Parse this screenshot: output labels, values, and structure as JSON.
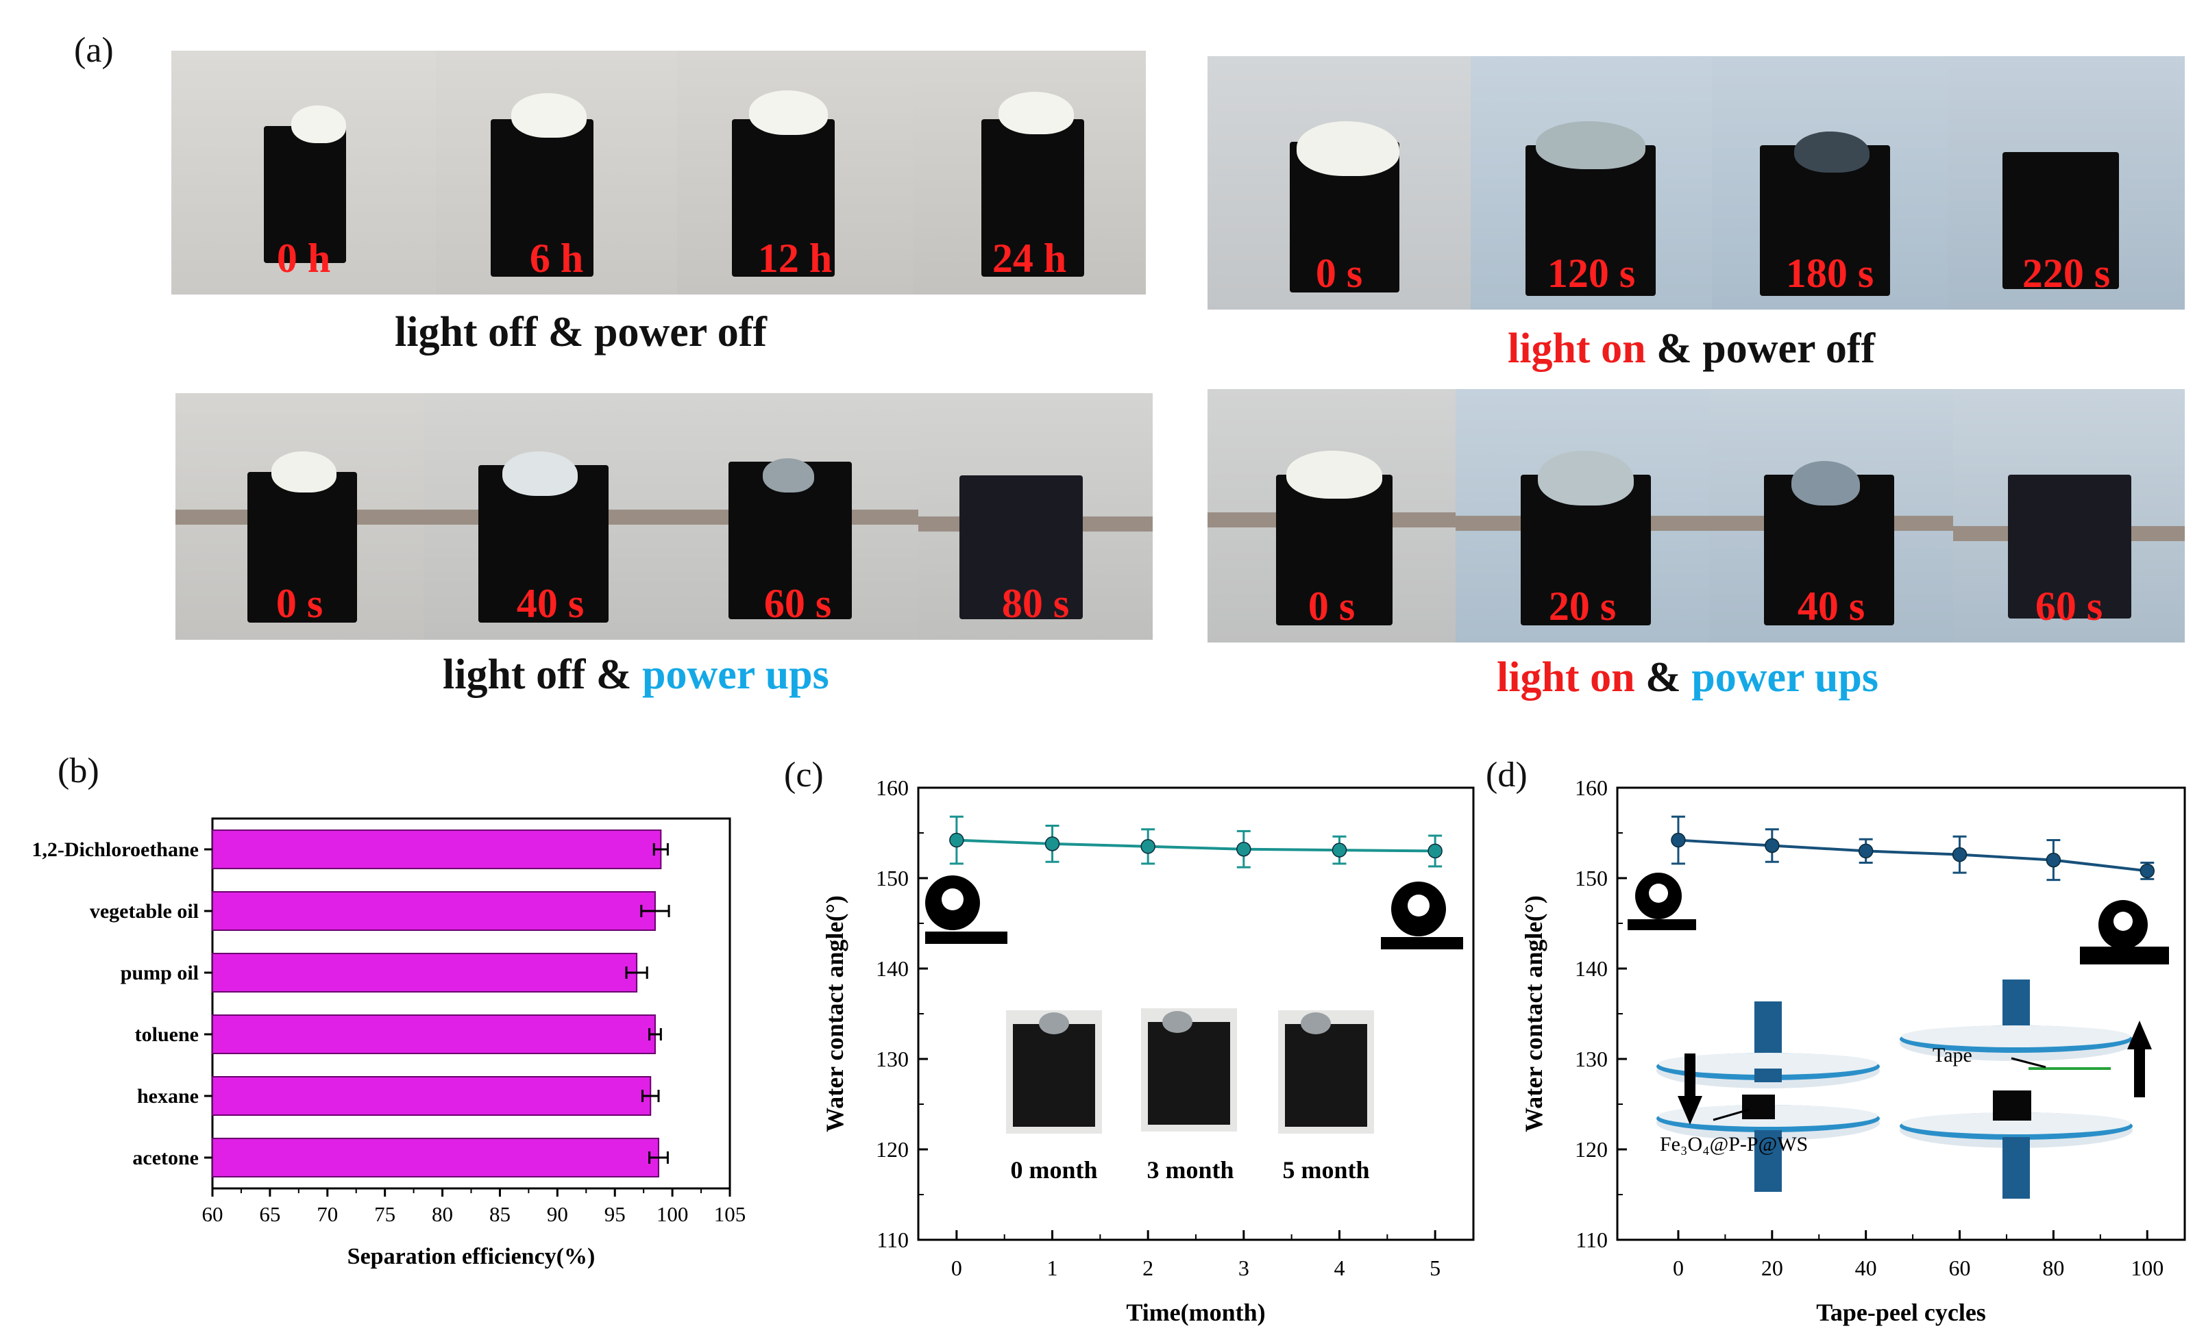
{
  "panel_labels": {
    "a": "(a)",
    "b": "(b)",
    "c": "(c)",
    "d": "(d)"
  },
  "photos": {
    "row1_left": {
      "times": [
        "0 h",
        "6 h",
        "12 h",
        "24 h"
      ],
      "caption": "light off & power off"
    },
    "row1_right": {
      "times": [
        "0 s",
        "120 s",
        "180 s",
        "220 s"
      ],
      "caption_red": "light on",
      "caption_mid": " & ",
      "caption_rest": "power off"
    },
    "row2_left": {
      "times": [
        "0 s",
        "40 s",
        "60 s",
        "80 s"
      ],
      "caption_black": "light off & ",
      "caption_blue": "power ups"
    },
    "row2_right": {
      "times": [
        "0 s",
        "20 s",
        "40 s",
        "60 s"
      ],
      "caption_red": "light on",
      "caption_mid": " & ",
      "caption_blue": "power ups"
    }
  },
  "colors": {
    "bar": "#e020e6",
    "line_c": "#1a9390",
    "line_d": "#17507a",
    "red": "#ef1c1c",
    "blue": "#14a8e6"
  },
  "chart_data": [
    {
      "id": "b",
      "type": "bar",
      "orientation": "horizontal",
      "categories": [
        "1,2-Dichloroethane",
        "vegetable oil",
        "pump oil",
        "toluene",
        "hexane",
        "acetone"
      ],
      "values": [
        99.0,
        98.5,
        96.9,
        98.5,
        98.1,
        98.8
      ],
      "errors": [
        0.6,
        1.2,
        0.9,
        0.5,
        0.7,
        0.8
      ],
      "xlabel": "Separation efficiency(%)",
      "xlim": [
        60,
        105
      ],
      "xticks": [
        60,
        65,
        70,
        75,
        80,
        85,
        90,
        95,
        100,
        105
      ]
    },
    {
      "id": "c",
      "type": "line",
      "x": [
        0,
        1,
        2,
        3,
        4,
        5
      ],
      "y": [
        154.2,
        153.8,
        153.5,
        153.2,
        153.1,
        153.0
      ],
      "errors": [
        2.6,
        2.0,
        1.9,
        2.0,
        1.5,
        1.7
      ],
      "xlabel": "Time(month)",
      "ylabel": "Water contact angle(°)",
      "ylim": [
        110,
        160
      ],
      "yticks": [
        110,
        120,
        130,
        140,
        150,
        160
      ],
      "xticks": [
        0,
        1,
        2,
        3,
        4,
        5
      ],
      "inset_labels": [
        "0 month",
        "3 month",
        "5 month"
      ]
    },
    {
      "id": "d",
      "type": "line",
      "x": [
        0,
        20,
        40,
        60,
        80,
        100
      ],
      "y": [
        154.2,
        153.6,
        153.0,
        152.6,
        152.0,
        150.8
      ],
      "errors": [
        2.6,
        1.8,
        1.3,
        2.0,
        2.2,
        0.9
      ],
      "xlabel": "Tape-peel cycles",
      "ylabel": "Water contact angle(°)",
      "ylim": [
        110,
        160
      ],
      "yticks": [
        110,
        120,
        130,
        140,
        150,
        160
      ],
      "xticks": [
        0,
        20,
        40,
        60,
        80,
        100
      ],
      "inset_labels": {
        "tape": "Tape",
        "sample": "Fe₃O₄@P-P@WS"
      }
    }
  ]
}
